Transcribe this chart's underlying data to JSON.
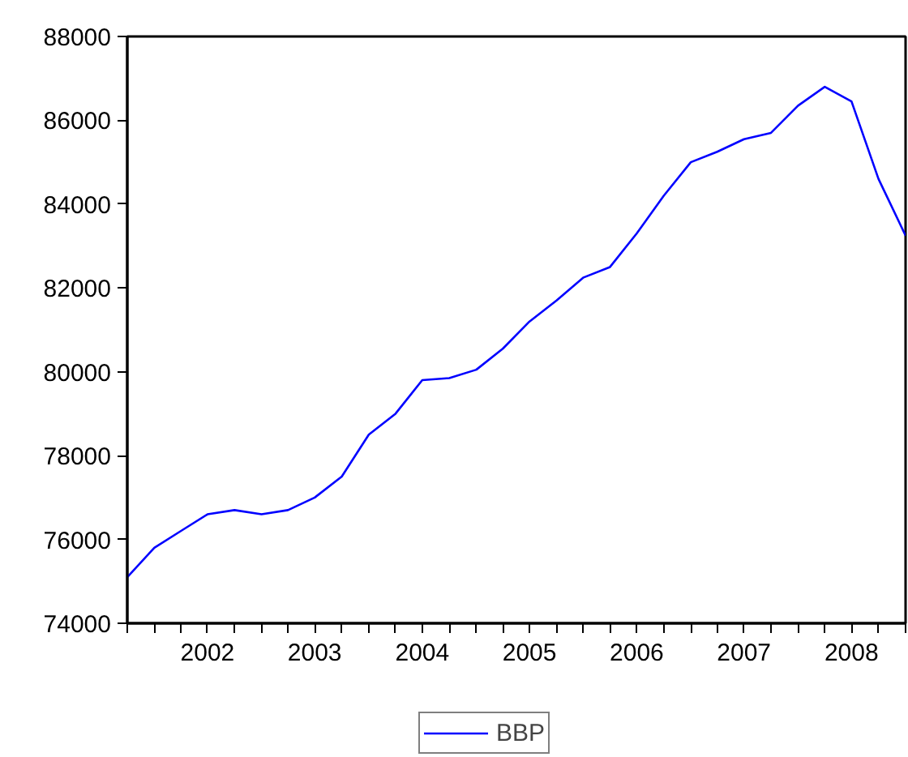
{
  "chart_data": {
    "type": "line",
    "x": [
      "2001-10",
      "2002-01",
      "2002-04",
      "2002-07",
      "2002-10",
      "2003-01",
      "2003-04",
      "2003-07",
      "2003-10",
      "2004-01",
      "2004-04",
      "2004-07",
      "2004-10",
      "2005-01",
      "2005-04",
      "2005-07",
      "2005-10",
      "2006-01",
      "2006-04",
      "2006-07",
      "2006-10",
      "2007-01",
      "2007-04",
      "2007-07",
      "2007-10",
      "2008-01",
      "2008-04",
      "2008-07",
      "2008-10",
      "2009-01"
    ],
    "series": [
      {
        "name": "BBP",
        "color": "#0000ff",
        "values": [
          75100,
          75800,
          76200,
          76600,
          76700,
          76600,
          76700,
          77000,
          77500,
          78500,
          79000,
          79800,
          79850,
          80050,
          80550,
          81200,
          81700,
          82250,
          82500,
          83300,
          84200,
          85000,
          85250,
          85550,
          85700,
          86350,
          86800,
          86450,
          84600,
          83250
        ]
      }
    ],
    "xlim": [
      "2001-10",
      "2009-01"
    ],
    "xticks": [
      {
        "value": "2001-10",
        "label": null
      },
      {
        "value": "2002-01",
        "label": null
      },
      {
        "value": "2002-04",
        "label": null
      },
      {
        "value": "2002-07",
        "label": "2002"
      },
      {
        "value": "2002-10",
        "label": null
      },
      {
        "value": "2003-01",
        "label": null
      },
      {
        "value": "2003-04",
        "label": null
      },
      {
        "value": "2003-07",
        "label": "2003"
      },
      {
        "value": "2003-10",
        "label": null
      },
      {
        "value": "2004-01",
        "label": null
      },
      {
        "value": "2004-04",
        "label": null
      },
      {
        "value": "2004-07",
        "label": "2004"
      },
      {
        "value": "2004-10",
        "label": null
      },
      {
        "value": "2005-01",
        "label": null
      },
      {
        "value": "2005-04",
        "label": null
      },
      {
        "value": "2005-07",
        "label": "2005"
      },
      {
        "value": "2005-10",
        "label": null
      },
      {
        "value": "2006-01",
        "label": null
      },
      {
        "value": "2006-04",
        "label": null
      },
      {
        "value": "2006-07",
        "label": "2006"
      },
      {
        "value": "2006-10",
        "label": null
      },
      {
        "value": "2007-01",
        "label": null
      },
      {
        "value": "2007-04",
        "label": null
      },
      {
        "value": "2007-07",
        "label": "2007"
      },
      {
        "value": "2007-10",
        "label": null
      },
      {
        "value": "2008-01",
        "label": null
      },
      {
        "value": "2008-04",
        "label": null
      },
      {
        "value": "2008-07",
        "label": "2008"
      },
      {
        "value": "2008-10",
        "label": null
      },
      {
        "value": "2009-01",
        "label": null
      }
    ],
    "ylim": [
      74000,
      88000
    ],
    "yticks": [
      74000,
      76000,
      78000,
      80000,
      82000,
      84000,
      86000,
      88000
    ],
    "grid": false,
    "legend": "bottom",
    "line_style": "solid"
  }
}
